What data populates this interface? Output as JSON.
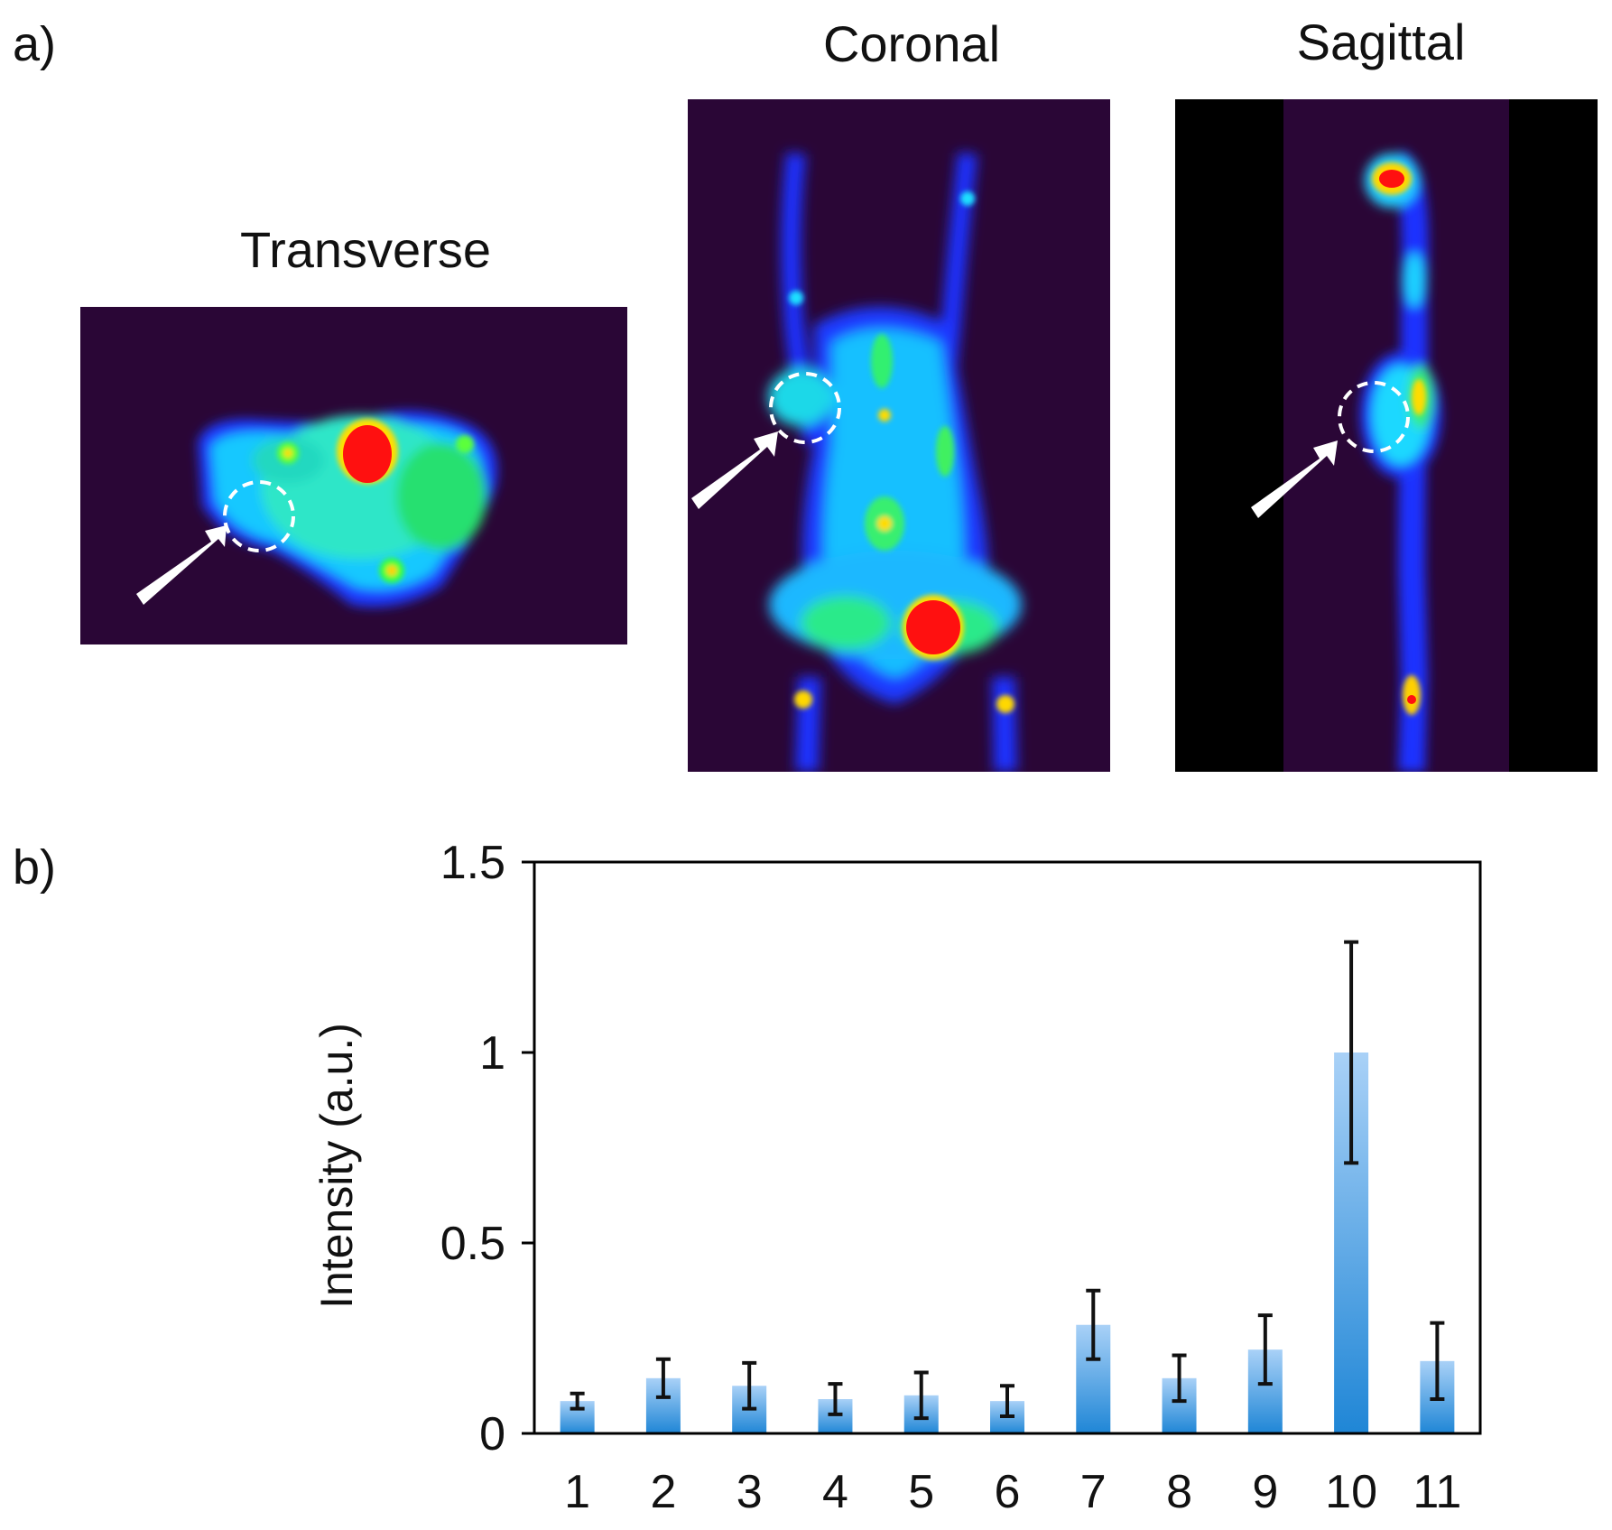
{
  "panels": {
    "a_label": "a)",
    "b_label": "b)",
    "views": {
      "transverse": "Transverse",
      "coronal": "Coronal",
      "sagittal": "Sagittal"
    }
  },
  "colors": {
    "scan_background": "#2a0636",
    "bar_top": "#a9d1f7",
    "bar_bottom": "#1f86d6",
    "error_bar": "#111111",
    "axis": "#000000"
  },
  "chart_data": {
    "type": "bar",
    "title": "",
    "xlabel": "",
    "ylabel": "Intensity (a.u.)",
    "categories": [
      "1",
      "2",
      "3",
      "4",
      "5",
      "6",
      "7",
      "8",
      "9",
      "10",
      "11"
    ],
    "values": [
      0.085,
      0.145,
      0.125,
      0.09,
      0.1,
      0.085,
      0.285,
      0.145,
      0.22,
      1.0,
      0.19
    ],
    "errors": [
      0.02,
      0.05,
      0.06,
      0.04,
      0.06,
      0.04,
      0.09,
      0.06,
      0.09,
      0.29,
      0.1
    ],
    "ylim": [
      0,
      1.5
    ],
    "yticks": [
      0,
      0.5,
      1,
      1.5
    ],
    "ytick_labels": [
      "0",
      "0.5",
      "1",
      "1.5"
    ],
    "grid": false,
    "legend": "none"
  }
}
